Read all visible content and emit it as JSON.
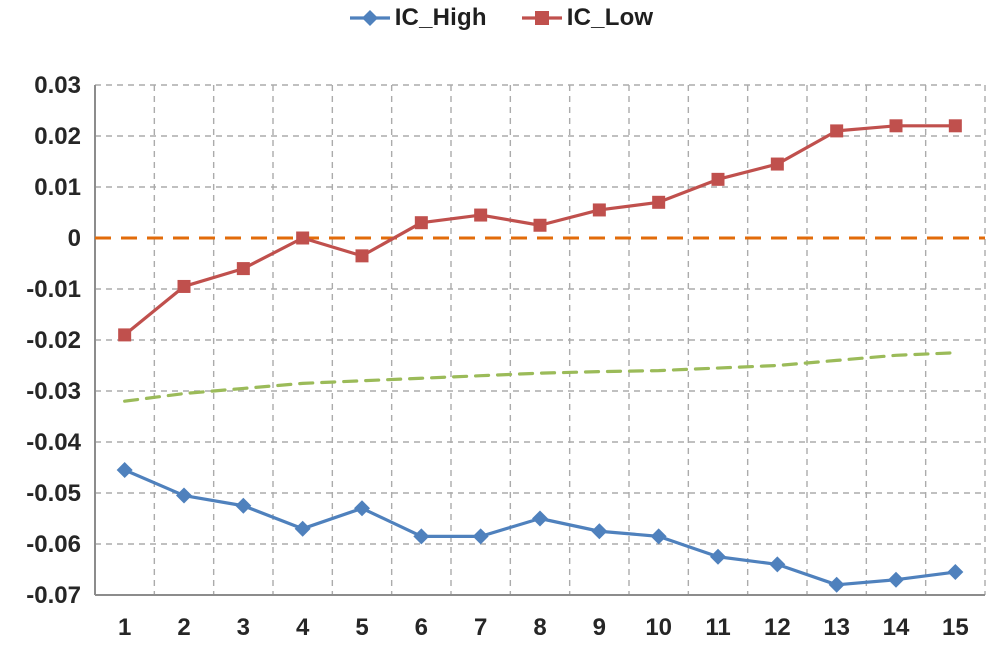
{
  "chart_data": {
    "type": "line",
    "title": "",
    "xlabel": "",
    "ylabel": "",
    "legend_position": "top-center",
    "grid": "dashed",
    "x": [
      1,
      2,
      3,
      4,
      5,
      6,
      7,
      8,
      9,
      10,
      11,
      12,
      13,
      14,
      15
    ],
    "x_tick_labels": [
      "1",
      "2",
      "3",
      "4",
      "5",
      "6",
      "7",
      "8",
      "9",
      "10",
      "11",
      "12",
      "13",
      "14",
      "15"
    ],
    "y_tick_values": [
      0.03,
      0.02,
      0.01,
      0,
      -0.01,
      -0.02,
      -0.03,
      -0.04,
      -0.05,
      -0.06,
      -0.07
    ],
    "y_tick_labels": [
      "0.03",
      "0.02",
      "0.01",
      "0",
      "-0.01",
      "-0.02",
      "-0.03",
      "-0.04",
      "-0.05",
      "-0.06",
      "-0.07"
    ],
    "ylim": [
      -0.07,
      0.03
    ],
    "zero_line": {
      "y": 0,
      "color": "#E26B0A",
      "style": "dashed"
    },
    "series": [
      {
        "name": "IC_High",
        "color": "#4F81BD",
        "marker": "diamond",
        "line_style": "solid",
        "in_legend": true,
        "values": [
          -0.0455,
          -0.0505,
          -0.0525,
          -0.057,
          -0.053,
          -0.0585,
          -0.0585,
          -0.055,
          -0.0575,
          -0.0585,
          -0.0625,
          -0.064,
          -0.068,
          -0.067,
          -0.0655
        ]
      },
      {
        "name": "IC_Low",
        "color": "#C0504D",
        "marker": "square",
        "line_style": "solid",
        "in_legend": true,
        "values": [
          -0.019,
          -0.0095,
          -0.006,
          0.0,
          -0.0035,
          0.003,
          0.0045,
          0.0025,
          0.0055,
          0.007,
          0.0115,
          0.0145,
          0.021,
          0.022,
          0.022
        ]
      },
      {
        "name": "",
        "color": "#9BBB59",
        "marker": "none",
        "line_style": "dashed",
        "in_legend": false,
        "values": [
          -0.032,
          -0.0305,
          -0.0295,
          -0.0285,
          -0.028,
          -0.0275,
          -0.027,
          -0.0265,
          -0.0262,
          -0.026,
          -0.0255,
          -0.025,
          -0.024,
          -0.023,
          -0.0225
        ]
      }
    ],
    "colors": {
      "grid": "#ABABAB",
      "axis": "#8C8C8C",
      "text": "#262626"
    }
  }
}
